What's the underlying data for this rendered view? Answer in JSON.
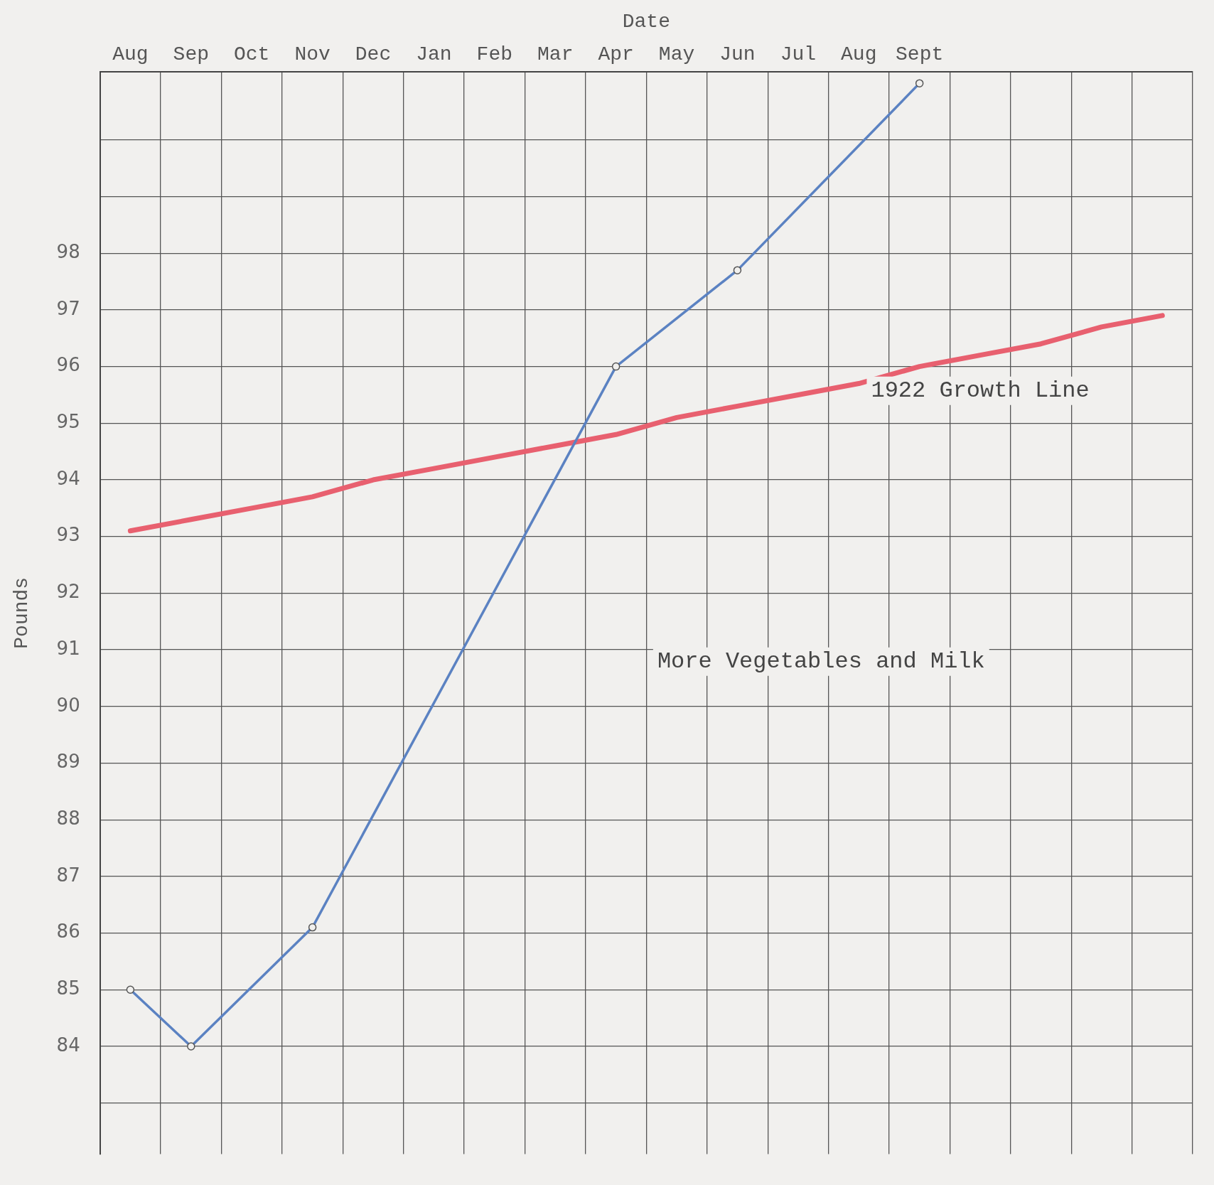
{
  "chart_data": {
    "type": "line",
    "xlabel": "Date",
    "ylabel": "Pounds",
    "categories": [
      "Aug",
      "Sep",
      "Oct",
      "Nov",
      "Dec",
      "Jan",
      "Feb",
      "Mar",
      "Apr",
      "May",
      "Jun",
      "Jul",
      "Aug",
      "Sept",
      null,
      null,
      null,
      null
    ],
    "series": [
      {
        "color": "#5b82c2",
        "marker": "circle",
        "values": [
          85,
          84,
          null,
          86.1,
          null,
          null,
          null,
          null,
          96,
          null,
          97.7,
          null,
          null,
          101,
          null,
          null,
          null,
          null
        ]
      },
      {
        "name": "1922 Growth Line",
        "color": "#e8606f",
        "marker": "none",
        "values": [
          93.1,
          93.3,
          93.5,
          93.7,
          94.0,
          94.2,
          94.4,
          94.6,
          94.8,
          95.1,
          95.3,
          95.5,
          95.7,
          96.0,
          96.2,
          96.4,
          96.7,
          96.9
        ]
      }
    ],
    "ylim": [
      82.1,
      101.2
    ],
    "yticks": [
      {
        "value": 83,
        "label": null
      },
      84,
      85,
      86,
      87,
      88,
      89,
      90,
      91,
      92,
      93,
      94,
      95,
      96,
      97,
      98,
      {
        "value": 99,
        "label": null
      },
      {
        "value": 100,
        "label": null
      }
    ],
    "grid": true,
    "legend": false,
    "line_style": "solid",
    "annotations": [
      "More Vegetables and Milk"
    ]
  }
}
